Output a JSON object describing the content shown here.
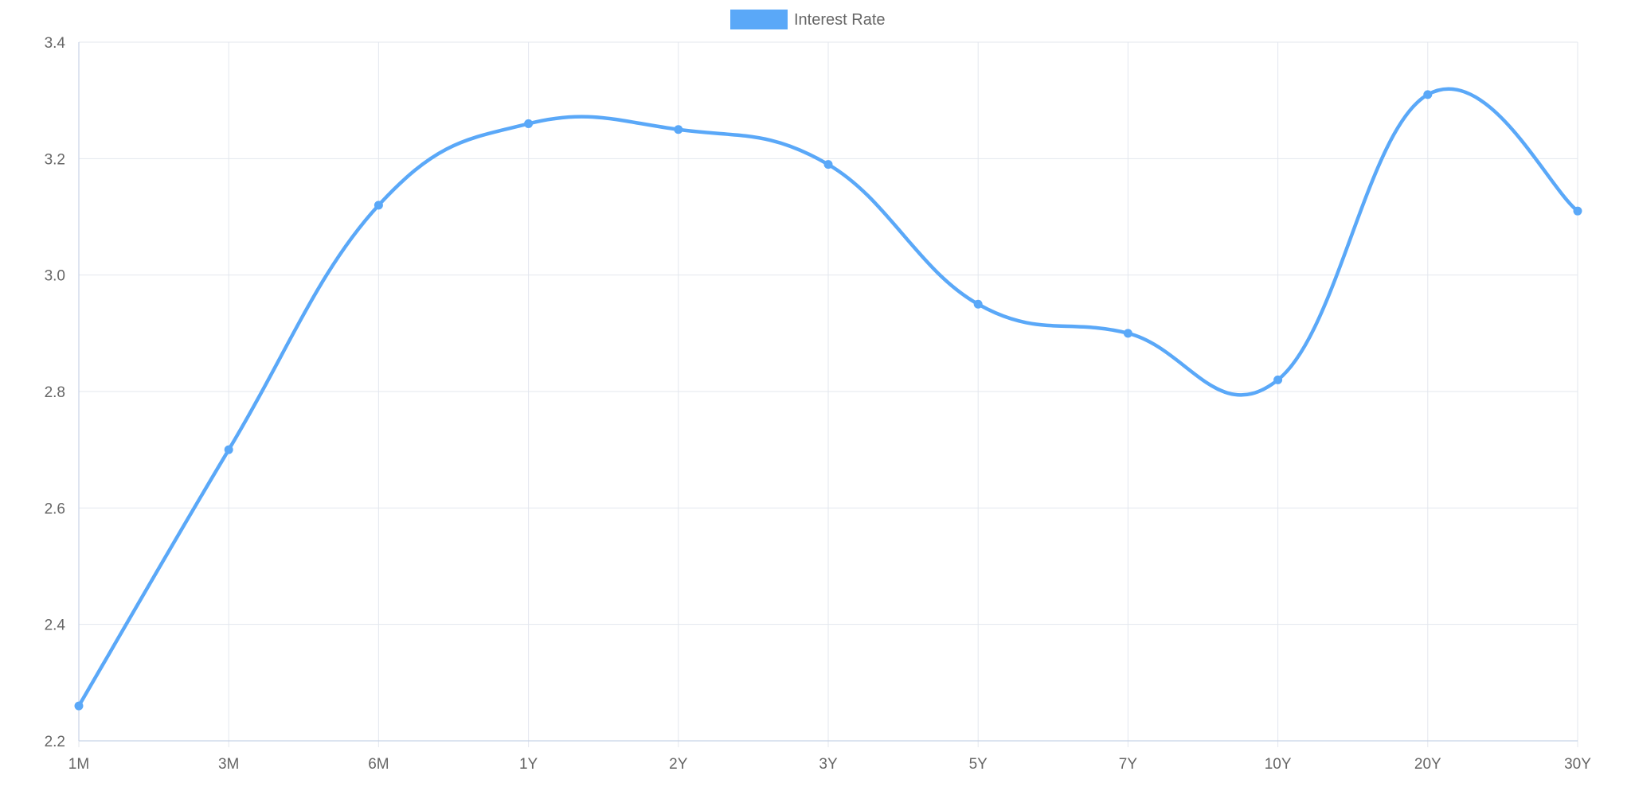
{
  "legend": {
    "series_label": "Interest Rate"
  },
  "colors": {
    "series": "#5aa8f8",
    "grid": "#e3e7ee",
    "axis": "#c7d3e6",
    "text": "#666666"
  },
  "chart_data": {
    "type": "line",
    "title": "",
    "xlabel": "",
    "ylabel": "",
    "categories": [
      "1M",
      "3M",
      "6M",
      "1Y",
      "2Y",
      "3Y",
      "5Y",
      "7Y",
      "10Y",
      "20Y",
      "30Y"
    ],
    "series": [
      {
        "name": "Interest Rate",
        "values": [
          2.26,
          2.7,
          3.12,
          3.26,
          3.25,
          3.19,
          2.95,
          2.9,
          2.82,
          3.31,
          3.11
        ]
      }
    ],
    "ylim": [
      2.2,
      3.4
    ],
    "yticks": [
      "2.2",
      "2.4",
      "2.6",
      "2.8",
      "3.0",
      "3.2",
      "3.4"
    ],
    "grid": true,
    "legend_position": "top-center",
    "smooth": true
  }
}
